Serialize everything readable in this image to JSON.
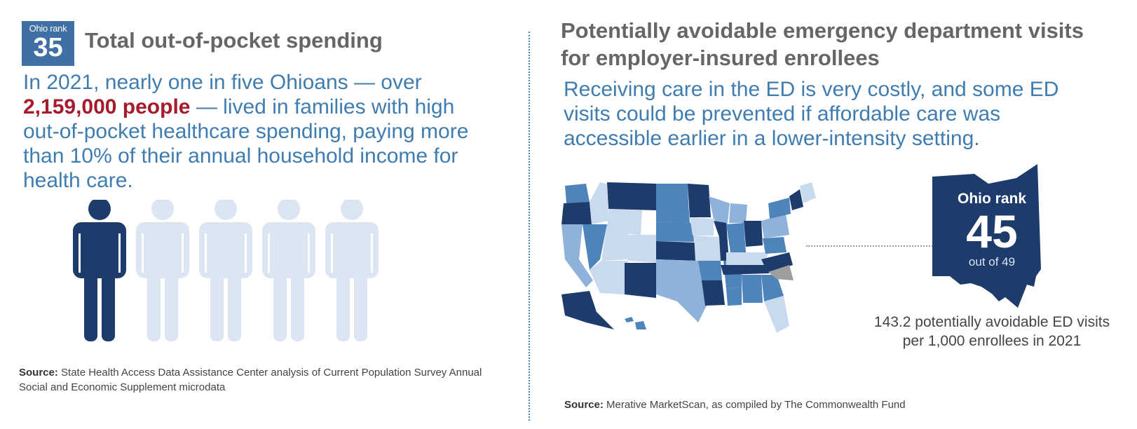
{
  "left": {
    "rank_label": "Ohio rank",
    "rank_value": "35",
    "title": "Total out-of-pocket spending",
    "body_pre": "In 2021, nearly one in five Ohioans — over ",
    "body_highlight": "2,159,000 people",
    "body_post": " — lived in families with high out-of-pocket healthcare spending, paying more than 10% of their annual household income for health care.",
    "people_graphic": {
      "total_figures": 5,
      "highlighted_figures": 1,
      "highlight_color": "#1d3b6b",
      "muted_color": "#dce6f3"
    },
    "source_label": "Source:",
    "source_text": " State Health Access Data Assistance Center analysis of Current Population Survey Annual Social and Economic Supplement microdata"
  },
  "right": {
    "title": "Potentially avoidable emergency department visits for employer-insured enrollees",
    "body": "Receiving care in the ED is very costly, and some ED visits could be prevented if affordable care was accessible earlier in a lower-intensity setting.",
    "ohio_rank_label": "Ohio rank",
    "ohio_rank_value": "45",
    "ohio_rank_out_of": "out of 49",
    "stat_text": "143.2 potentially avoidable ED visits per 1,000 enrollees in 2021",
    "source_label": "Source:",
    "source_text": " Merative MarketScan, as compiled by The Commonwealth Fund",
    "map_colors": [
      "#1d3b6b",
      "#4f84bb",
      "#8fb2da",
      "#c9daee",
      "#9e9e9e"
    ]
  }
}
